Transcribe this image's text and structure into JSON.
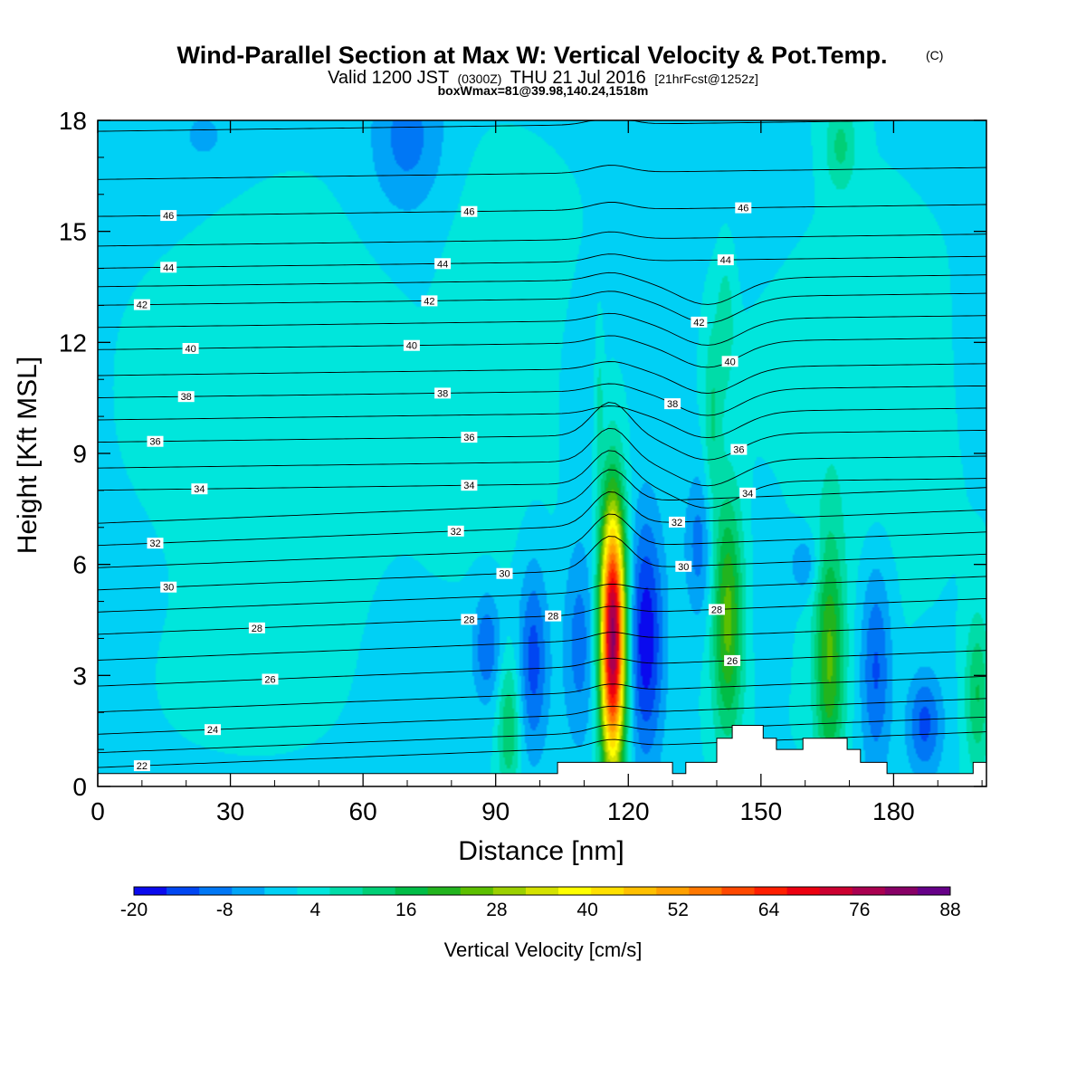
{
  "title": {
    "main": "Wind-Parallel Section at Max W: Vertical Velocity & Pot.Temp.",
    "main_tag": "(C)",
    "valid_prefix": "Valid 1200 JST",
    "valid_utc": "(0300Z)",
    "valid_date": "THU 21 Jul 2016",
    "forecast": "[21hrFcst@1252z]",
    "box_info": "boxWmax=81@39.98,140.24,1518m"
  },
  "chart_data": {
    "type": "heatmap",
    "xlabel": "Distance [nm]",
    "ylabel": "Height [Kft MSL]",
    "xlim": [
      0,
      201
    ],
    "ylim": [
      0,
      18
    ],
    "x_ticks": [
      0,
      30,
      60,
      90,
      120,
      150,
      180
    ],
    "y_ticks": [
      0,
      3,
      6,
      9,
      12,
      15,
      18
    ],
    "background_fill": "#00e0f0",
    "colorbar": {
      "title": "Vertical Velocity [cm/s]",
      "labels": [
        -20,
        -8,
        4,
        16,
        28,
        40,
        52,
        64,
        76,
        88
      ],
      "colors": [
        "#0a0aee",
        "#0046f2",
        "#0077f5",
        "#00a4f7",
        "#00d0f5",
        "#00e6dc",
        "#00dca8",
        "#00cf76",
        "#00bd46",
        "#22b41e",
        "#5cbf00",
        "#9bd000",
        "#d4e200",
        "#ffff00",
        "#ffe000",
        "#ffc000",
        "#ffa000",
        "#ff7800",
        "#ff4800",
        "#ff1e00",
        "#ec0010",
        "#cc0030",
        "#aa0050",
        "#880066",
        "#660088"
      ]
    },
    "velocity_features": [
      {
        "label": "strong-updraft",
        "x": 116.5,
        "y": 4.0,
        "sx": 2.0,
        "sy": 2.5,
        "w": 81
      },
      {
        "label": "updraft-upper-column",
        "x": 113.5,
        "y": 10.5,
        "sx": 0.6,
        "sy": 1.2,
        "w": 6
      },
      {
        "label": "downdraft-right",
        "x": 124,
        "y": 4.0,
        "sx": 2.8,
        "sy": 2.3,
        "w": -20
      },
      {
        "label": "downdraft-left",
        "x": 109,
        "y": 4.0,
        "sx": 2.6,
        "sy": 2.0,
        "w": -10
      },
      {
        "label": "downdraft-97",
        "x": 98.5,
        "y": 3.5,
        "sx": 2.3,
        "sy": 1.8,
        "w": -14
      },
      {
        "label": "downdraft-88",
        "x": 88,
        "y": 3.8,
        "sx": 2.2,
        "sy": 1.0,
        "w": -12
      },
      {
        "label": "updraft-93",
        "x": 93,
        "y": 1.6,
        "sx": 1.8,
        "sy": 1.3,
        "w": 14
      },
      {
        "label": "updraft-142",
        "x": 142.5,
        "y": 4.6,
        "sx": 2.4,
        "sy": 2.3,
        "w": 24
      },
      {
        "label": "updraft-slant-a",
        "x": 139,
        "y": 10.0,
        "sx": 1.4,
        "sy": 1.8,
        "w": 9
      },
      {
        "label": "updraft-slant-b",
        "x": 142,
        "y": 12.5,
        "sx": 1.4,
        "sy": 1.3,
        "w": 8
      },
      {
        "label": "downdraft-slant",
        "x": 136,
        "y": 6.5,
        "sx": 2.2,
        "sy": 1.4,
        "w": -10
      },
      {
        "label": "updraft-165",
        "x": 165.5,
        "y": 3.5,
        "sx": 2.3,
        "sy": 2.3,
        "w": 22
      },
      {
        "label": "downdraft-153",
        "x": 152,
        "y": 4.5,
        "sx": 2.5,
        "sy": 1.8,
        "w": -3
      },
      {
        "label": "downdraft-177",
        "x": 176,
        "y": 3.2,
        "sx": 2.5,
        "sy": 2.0,
        "w": -14
      },
      {
        "label": "downdraft-187",
        "x": 187,
        "y": 1.7,
        "sx": 2.8,
        "sy": 1.0,
        "w": -14
      },
      {
        "label": "downdraft-160-high",
        "x": 160,
        "y": 6.0,
        "sx": 2.5,
        "sy": 0.6,
        "w": -8
      },
      {
        "label": "updraft-198",
        "x": 199,
        "y": 2.5,
        "sx": 2.0,
        "sy": 1.5,
        "w": 14
      },
      {
        "label": "downdraft-top-70",
        "x": 70,
        "y": 17.5,
        "sx": 6,
        "sy": 1.5,
        "w": -10
      },
      {
        "label": "downdraft-top-24",
        "x": 24,
        "y": 17.6,
        "sx": 3.5,
        "sy": 0.5,
        "w": -6
      },
      {
        "label": "updraft-top-168",
        "x": 168,
        "y": 17.3,
        "sx": 2.5,
        "sy": 0.9,
        "w": 10
      },
      {
        "label": "updraft-mid-90",
        "x": 92,
        "y": 12,
        "sx": 8,
        "sy": 3,
        "w": 4
      },
      {
        "label": "updraft-mid-40",
        "x": 40,
        "y": 10,
        "sx": 18,
        "sy": 4,
        "w": 4
      },
      {
        "label": "updraft-mid-170",
        "x": 172,
        "y": 10,
        "sx": 12,
        "sy": 4,
        "w": 4
      },
      {
        "label": "downdraft-low-68",
        "x": 68,
        "y": 2.8,
        "sx": 3.5,
        "sy": 1.6,
        "w": -3
      }
    ],
    "terrain": {
      "x": [
        0,
        104,
        104,
        113,
        113,
        117,
        117,
        130,
        130,
        133,
        133,
        140,
        140,
        143.5,
        143.5,
        150.5,
        150.5,
        153.5,
        153.5,
        159.5,
        159.5,
        169.5,
        169.5,
        172.5,
        172.5,
        178.5,
        178.5,
        198,
        198,
        201
      ],
      "y": [
        0.35,
        0.35,
        0.65,
        0.65,
        0.65,
        0.65,
        0.65,
        0.65,
        0.35,
        0.35,
        0.65,
        0.65,
        1.3,
        1.3,
        1.65,
        1.65,
        1.3,
        1.3,
        1.0,
        1.0,
        1.3,
        1.3,
        1.0,
        1.0,
        0.65,
        0.65,
        0.35,
        0.35,
        0.65,
        0.65
      ]
    },
    "theta_contours": {
      "values": [
        22,
        23,
        24,
        25,
        26,
        27,
        28,
        29,
        30,
        31,
        32,
        33,
        34,
        35,
        36,
        37,
        38,
        39,
        40,
        41,
        42,
        43,
        44,
        45,
        46,
        47,
        48
      ],
      "y_profile": [
        0.8,
        1.2,
        1.7,
        2.3,
        3.0,
        3.7,
        4.4,
        5.0,
        5.6,
        6.2,
        6.8,
        7.4,
        8.1,
        8.7,
        9.4,
        10.0,
        10.6,
        11.2,
        11.9,
        12.5,
        13.1,
        13.6,
        14.1,
        14.7,
        15.5,
        16.5,
        17.8
      ],
      "labeled": [
        {
          "v": 22,
          "x": 10
        },
        {
          "v": 24,
          "x": 26
        },
        {
          "v": 26,
          "x": 39
        },
        {
          "v": 28,
          "x": 36
        },
        {
          "v": 30,
          "x": 16
        },
        {
          "v": 32,
          "x": 13
        },
        {
          "v": 34,
          "x": 23
        },
        {
          "v": 36,
          "x": 13
        },
        {
          "v": 38,
          "x": 20
        },
        {
          "v": 40,
          "x": 21
        },
        {
          "v": 42,
          "x": 10
        },
        {
          "v": 44,
          "x": 16
        },
        {
          "v": 46,
          "x": 16
        },
        {
          "v": 40,
          "x": 71
        },
        {
          "v": 42,
          "x": 75
        },
        {
          "v": 44,
          "x": 78
        },
        {
          "v": 46,
          "x": 84
        },
        {
          "v": 38,
          "x": 78
        },
        {
          "v": 36,
          "x": 84
        },
        {
          "v": 34,
          "x": 84
        },
        {
          "v": 32,
          "x": 81
        },
        {
          "v": 30,
          "x": 92
        },
        {
          "v": 28,
          "x": 84
        },
        {
          "v": 28,
          "x": 103
        },
        {
          "v": 26,
          "x": 143.5
        },
        {
          "v": 28,
          "x": 140
        },
        {
          "v": 30,
          "x": 132.5
        },
        {
          "v": 32,
          "x": 131
        },
        {
          "v": 34,
          "x": 147
        },
        {
          "v": 36,
          "x": 145
        },
        {
          "v": 38,
          "x": 130
        },
        {
          "v": 40,
          "x": 143
        },
        {
          "v": 42,
          "x": 136
        },
        {
          "v": 44,
          "x": 142
        },
        {
          "v": 46,
          "x": 146
        }
      ]
    }
  }
}
